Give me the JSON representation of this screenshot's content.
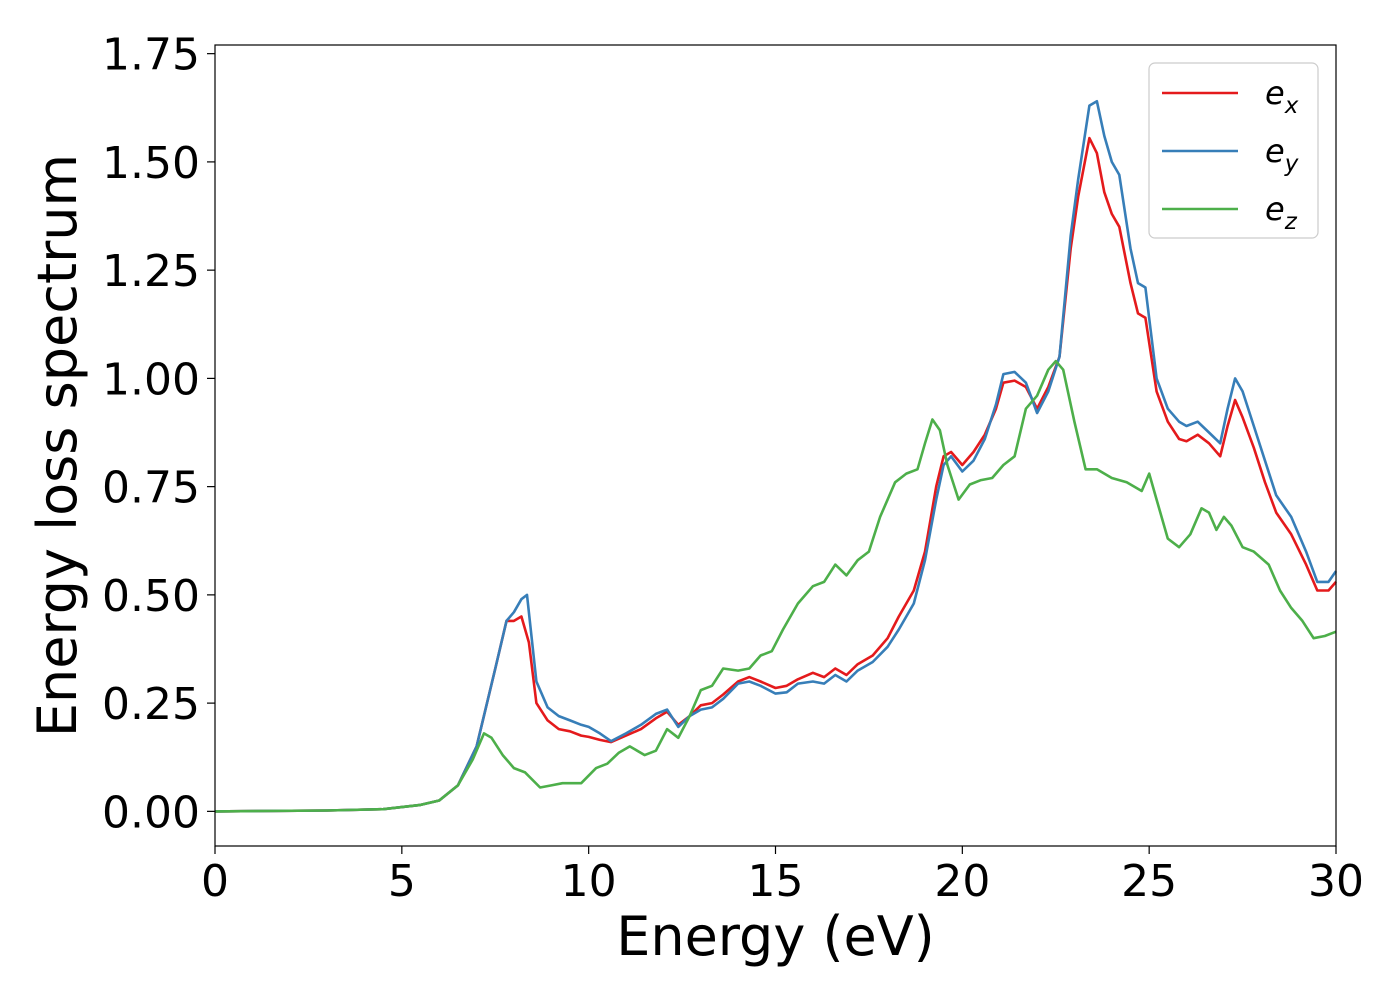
{
  "chart_data": {
    "type": "line",
    "title": "",
    "xlabel": "Energy (eV)",
    "ylabel": "Energy loss spectrum",
    "xlim": [
      0,
      30
    ],
    "ylim": [
      -0.08,
      1.77
    ],
    "xticks": [
      0,
      5,
      10,
      15,
      20,
      25,
      30
    ],
    "xtick_labels": [
      "0",
      "5",
      "10",
      "15",
      "20",
      "25",
      "30"
    ],
    "yticks": [
      0.0,
      0.25,
      0.5,
      0.75,
      1.0,
      1.25,
      1.5,
      1.75
    ],
    "ytick_labels": [
      "0.00",
      "0.25",
      "0.50",
      "0.75",
      "1.00",
      "1.25",
      "1.50",
      "1.75"
    ],
    "grid": false,
    "legend_position": "top-right",
    "series": [
      {
        "name": "e",
        "subscript": "x",
        "color": "#e41a1c",
        "points": [
          [
            0,
            0
          ],
          [
            3,
            0.002
          ],
          [
            4.5,
            0.005
          ],
          [
            5.5,
            0.015
          ],
          [
            6,
            0.025
          ],
          [
            6.5,
            0.06
          ],
          [
            7,
            0.15
          ],
          [
            7.5,
            0.33
          ],
          [
            7.8,
            0.44
          ],
          [
            8,
            0.44
          ],
          [
            8.2,
            0.45
          ],
          [
            8.4,
            0.39
          ],
          [
            8.6,
            0.25
          ],
          [
            8.9,
            0.21
          ],
          [
            9.2,
            0.19
          ],
          [
            9.5,
            0.185
          ],
          [
            9.8,
            0.175
          ],
          [
            10,
            0.172
          ],
          [
            10.3,
            0.165
          ],
          [
            10.6,
            0.16
          ],
          [
            11,
            0.175
          ],
          [
            11.4,
            0.19
          ],
          [
            11.8,
            0.215
          ],
          [
            12.1,
            0.23
          ],
          [
            12.4,
            0.2
          ],
          [
            12.7,
            0.22
          ],
          [
            13,
            0.245
          ],
          [
            13.3,
            0.25
          ],
          [
            13.6,
            0.27
          ],
          [
            14,
            0.3
          ],
          [
            14.3,
            0.31
          ],
          [
            14.6,
            0.3
          ],
          [
            15,
            0.285
          ],
          [
            15.3,
            0.29
          ],
          [
            15.6,
            0.305
          ],
          [
            16,
            0.32
          ],
          [
            16.3,
            0.31
          ],
          [
            16.6,
            0.33
          ],
          [
            16.9,
            0.315
          ],
          [
            17.2,
            0.34
          ],
          [
            17.6,
            0.36
          ],
          [
            18,
            0.4
          ],
          [
            18.3,
            0.45
          ],
          [
            18.7,
            0.51
          ],
          [
            19,
            0.6
          ],
          [
            19.3,
            0.75
          ],
          [
            19.5,
            0.82
          ],
          [
            19.7,
            0.83
          ],
          [
            20,
            0.8
          ],
          [
            20.3,
            0.83
          ],
          [
            20.6,
            0.87
          ],
          [
            20.9,
            0.93
          ],
          [
            21.1,
            0.99
          ],
          [
            21.4,
            0.995
          ],
          [
            21.7,
            0.98
          ],
          [
            22,
            0.93
          ],
          [
            22.3,
            0.98
          ],
          [
            22.6,
            1.05
          ],
          [
            22.9,
            1.3
          ],
          [
            23.1,
            1.42
          ],
          [
            23.4,
            1.555
          ],
          [
            23.6,
            1.52
          ],
          [
            23.8,
            1.43
          ],
          [
            24,
            1.38
          ],
          [
            24.2,
            1.35
          ],
          [
            24.5,
            1.22
          ],
          [
            24.7,
            1.15
          ],
          [
            24.9,
            1.14
          ],
          [
            25.2,
            0.97
          ],
          [
            25.5,
            0.9
          ],
          [
            25.8,
            0.86
          ],
          [
            26,
            0.855
          ],
          [
            26.3,
            0.87
          ],
          [
            26.6,
            0.85
          ],
          [
            26.9,
            0.82
          ],
          [
            27.1,
            0.89
          ],
          [
            27.3,
            0.95
          ],
          [
            27.5,
            0.91
          ],
          [
            27.8,
            0.84
          ],
          [
            28.1,
            0.76
          ],
          [
            28.4,
            0.69
          ],
          [
            28.8,
            0.64
          ],
          [
            29.2,
            0.57
          ],
          [
            29.5,
            0.51
          ],
          [
            29.8,
            0.51
          ],
          [
            30,
            0.53
          ]
        ]
      },
      {
        "name": "e",
        "subscript": "y",
        "color": "#377eb8",
        "points": [
          [
            0,
            0
          ],
          [
            3,
            0.002
          ],
          [
            4.5,
            0.005
          ],
          [
            5.5,
            0.015
          ],
          [
            6,
            0.025
          ],
          [
            6.5,
            0.06
          ],
          [
            7,
            0.15
          ],
          [
            7.5,
            0.33
          ],
          [
            7.8,
            0.44
          ],
          [
            8,
            0.46
          ],
          [
            8.2,
            0.49
          ],
          [
            8.35,
            0.5
          ],
          [
            8.6,
            0.3
          ],
          [
            8.9,
            0.24
          ],
          [
            9.2,
            0.22
          ],
          [
            9.5,
            0.21
          ],
          [
            9.8,
            0.2
          ],
          [
            10,
            0.195
          ],
          [
            10.3,
            0.18
          ],
          [
            10.6,
            0.162
          ],
          [
            11,
            0.18
          ],
          [
            11.4,
            0.2
          ],
          [
            11.8,
            0.225
          ],
          [
            12.1,
            0.235
          ],
          [
            12.4,
            0.195
          ],
          [
            12.7,
            0.22
          ],
          [
            13,
            0.235
          ],
          [
            13.3,
            0.24
          ],
          [
            13.6,
            0.26
          ],
          [
            14,
            0.295
          ],
          [
            14.3,
            0.3
          ],
          [
            14.6,
            0.29
          ],
          [
            15,
            0.272
          ],
          [
            15.3,
            0.275
          ],
          [
            15.6,
            0.295
          ],
          [
            16,
            0.3
          ],
          [
            16.3,
            0.295
          ],
          [
            16.6,
            0.315
          ],
          [
            16.9,
            0.3
          ],
          [
            17.2,
            0.325
          ],
          [
            17.6,
            0.345
          ],
          [
            18,
            0.38
          ],
          [
            18.3,
            0.42
          ],
          [
            18.7,
            0.48
          ],
          [
            19,
            0.58
          ],
          [
            19.3,
            0.72
          ],
          [
            19.5,
            0.8
          ],
          [
            19.7,
            0.82
          ],
          [
            20,
            0.785
          ],
          [
            20.3,
            0.81
          ],
          [
            20.6,
            0.86
          ],
          [
            20.9,
            0.94
          ],
          [
            21.1,
            1.01
          ],
          [
            21.4,
            1.015
          ],
          [
            21.7,
            0.99
          ],
          [
            22,
            0.92
          ],
          [
            22.3,
            0.97
          ],
          [
            22.6,
            1.05
          ],
          [
            22.9,
            1.33
          ],
          [
            23.1,
            1.46
          ],
          [
            23.4,
            1.63
          ],
          [
            23.6,
            1.64
          ],
          [
            23.8,
            1.56
          ],
          [
            24,
            1.5
          ],
          [
            24.2,
            1.47
          ],
          [
            24.5,
            1.3
          ],
          [
            24.7,
            1.22
          ],
          [
            24.9,
            1.21
          ],
          [
            25.2,
            1.0
          ],
          [
            25.5,
            0.93
          ],
          [
            25.8,
            0.9
          ],
          [
            26,
            0.89
          ],
          [
            26.3,
            0.9
          ],
          [
            26.6,
            0.875
          ],
          [
            26.9,
            0.85
          ],
          [
            27.1,
            0.93
          ],
          [
            27.3,
            1.0
          ],
          [
            27.5,
            0.97
          ],
          [
            27.8,
            0.89
          ],
          [
            28.1,
            0.81
          ],
          [
            28.4,
            0.73
          ],
          [
            28.8,
            0.68
          ],
          [
            29.2,
            0.6
          ],
          [
            29.5,
            0.53
          ],
          [
            29.8,
            0.53
          ],
          [
            30,
            0.555
          ]
        ]
      },
      {
        "name": "e",
        "subscript": "z",
        "color": "#4daf4a",
        "points": [
          [
            0,
            0
          ],
          [
            3,
            0.002
          ],
          [
            4.5,
            0.005
          ],
          [
            5.5,
            0.015
          ],
          [
            6,
            0.025
          ],
          [
            6.5,
            0.06
          ],
          [
            6.9,
            0.12
          ],
          [
            7.2,
            0.18
          ],
          [
            7.4,
            0.17
          ],
          [
            7.7,
            0.13
          ],
          [
            8,
            0.1
          ],
          [
            8.3,
            0.09
          ],
          [
            8.7,
            0.055
          ],
          [
            9,
            0.06
          ],
          [
            9.3,
            0.065
          ],
          [
            9.8,
            0.065
          ],
          [
            10.2,
            0.1
          ],
          [
            10.5,
            0.11
          ],
          [
            10.8,
            0.135
          ],
          [
            11.1,
            0.15
          ],
          [
            11.5,
            0.13
          ],
          [
            11.8,
            0.14
          ],
          [
            12.1,
            0.19
          ],
          [
            12.4,
            0.17
          ],
          [
            12.7,
            0.22
          ],
          [
            13,
            0.28
          ],
          [
            13.3,
            0.29
          ],
          [
            13.6,
            0.33
          ],
          [
            14,
            0.325
          ],
          [
            14.3,
            0.33
          ],
          [
            14.6,
            0.36
          ],
          [
            14.9,
            0.37
          ],
          [
            15.2,
            0.42
          ],
          [
            15.6,
            0.48
          ],
          [
            16,
            0.52
          ],
          [
            16.3,
            0.53
          ],
          [
            16.6,
            0.57
          ],
          [
            16.9,
            0.545
          ],
          [
            17.2,
            0.58
          ],
          [
            17.5,
            0.6
          ],
          [
            17.8,
            0.68
          ],
          [
            18.2,
            0.76
          ],
          [
            18.5,
            0.78
          ],
          [
            18.8,
            0.79
          ],
          [
            19,
            0.85
          ],
          [
            19.2,
            0.905
          ],
          [
            19.4,
            0.88
          ],
          [
            19.6,
            0.8
          ],
          [
            19.9,
            0.72
          ],
          [
            20.2,
            0.755
          ],
          [
            20.5,
            0.765
          ],
          [
            20.8,
            0.77
          ],
          [
            21.1,
            0.8
          ],
          [
            21.4,
            0.82
          ],
          [
            21.7,
            0.93
          ],
          [
            22,
            0.96
          ],
          [
            22.3,
            1.02
          ],
          [
            22.5,
            1.04
          ],
          [
            22.7,
            1.02
          ],
          [
            23,
            0.9
          ],
          [
            23.3,
            0.79
          ],
          [
            23.6,
            0.79
          ],
          [
            24,
            0.77
          ],
          [
            24.4,
            0.76
          ],
          [
            24.8,
            0.74
          ],
          [
            25,
            0.78
          ],
          [
            25.2,
            0.72
          ],
          [
            25.5,
            0.63
          ],
          [
            25.8,
            0.61
          ],
          [
            26.1,
            0.64
          ],
          [
            26.4,
            0.7
          ],
          [
            26.6,
            0.69
          ],
          [
            26.8,
            0.65
          ],
          [
            27,
            0.68
          ],
          [
            27.2,
            0.66
          ],
          [
            27.5,
            0.61
          ],
          [
            27.8,
            0.6
          ],
          [
            28.2,
            0.57
          ],
          [
            28.5,
            0.51
          ],
          [
            28.8,
            0.47
          ],
          [
            29.1,
            0.44
          ],
          [
            29.4,
            0.4
          ],
          [
            29.7,
            0.405
          ],
          [
            30,
            0.415
          ]
        ]
      }
    ]
  }
}
